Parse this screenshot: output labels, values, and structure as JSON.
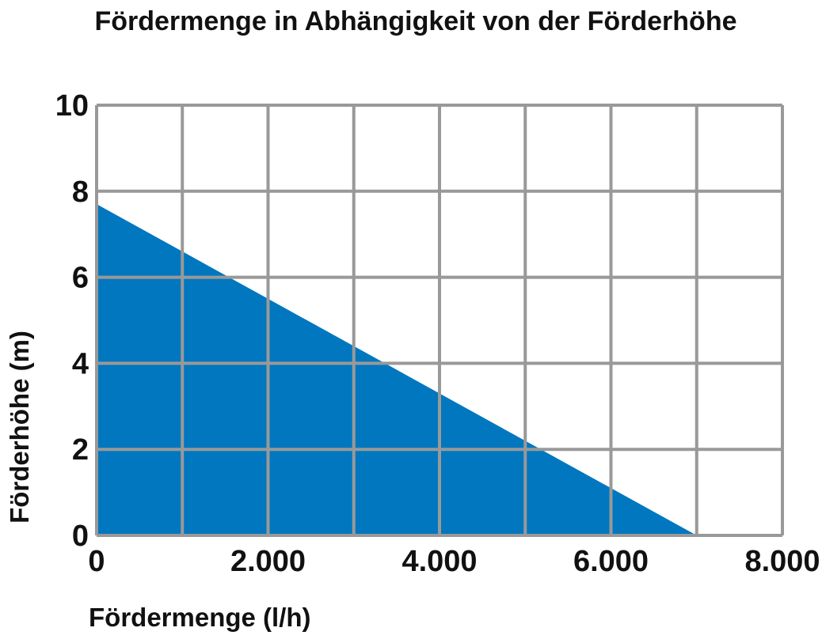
{
  "chart_data": {
    "type": "area",
    "title": "Fördermenge in Abhängigkeit von der Förderhöhe",
    "xlabel": "Fördermenge (l/h)",
    "ylabel": "Förderhöhe (m)",
    "xlim": [
      0,
      8000
    ],
    "ylim": [
      0,
      10
    ],
    "x_ticks": [
      "0",
      "2.000",
      "4.000",
      "6.000",
      "8.000"
    ],
    "y_ticks": [
      "0",
      "2",
      "4",
      "6",
      "8",
      "10"
    ],
    "x_grid_step": 1000,
    "y_grid_step": 2,
    "grid": true,
    "series": [
      {
        "x": [
          0,
          7000
        ],
        "y": [
          7.7,
          0
        ]
      }
    ],
    "colors": {
      "fill": "#0077BE",
      "grid": "#999999",
      "text": "#111111"
    }
  }
}
